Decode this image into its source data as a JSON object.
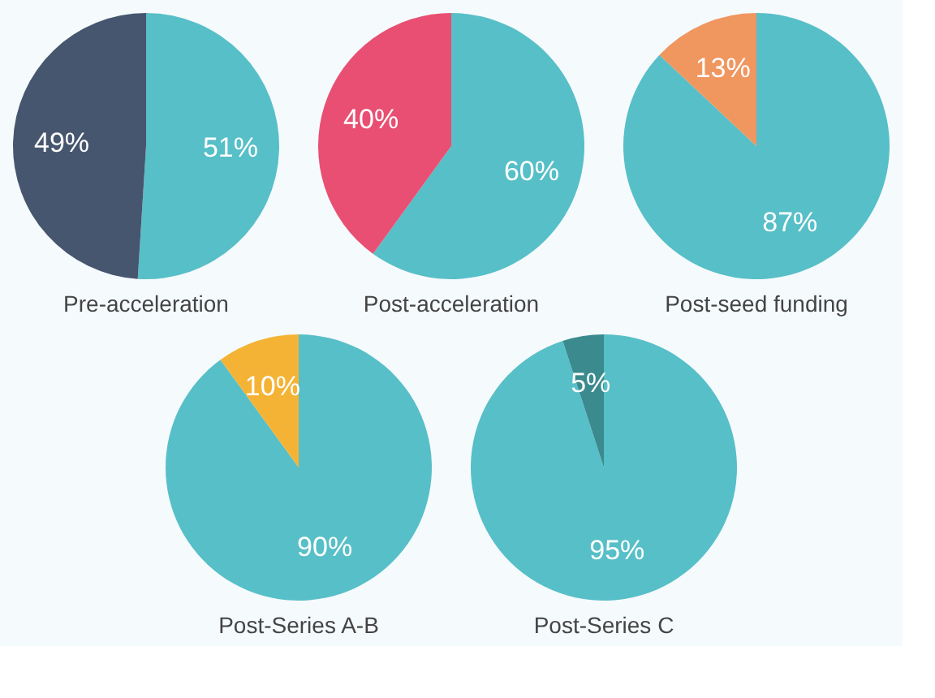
{
  "chart_data": [
    {
      "type": "pie",
      "title": "Pre-acceleration",
      "categories": [
        null,
        null
      ],
      "values": [
        51,
        49
      ],
      "colors": [
        "#57bfc7",
        "#46566e"
      ],
      "value_labels": [
        "51%",
        "49%"
      ]
    },
    {
      "type": "pie",
      "title": "Post-acceleration",
      "categories": [
        null,
        null
      ],
      "values": [
        60,
        40
      ],
      "colors": [
        "#57bfc7",
        "#e84f72"
      ],
      "value_labels": [
        "60%",
        "40%"
      ]
    },
    {
      "type": "pie",
      "title": "Post-seed funding",
      "categories": [
        null,
        null
      ],
      "values": [
        87,
        13
      ],
      "colors": [
        "#57bfc7",
        "#f0965f"
      ],
      "value_labels": [
        "87%",
        "13%"
      ]
    },
    {
      "type": "pie",
      "title": "Post-Series A-B",
      "categories": [
        null,
        null
      ],
      "values": [
        90,
        10
      ],
      "colors": [
        "#57bfc7",
        "#f5b335"
      ],
      "value_labels": [
        "90%",
        "10%"
      ]
    },
    {
      "type": "pie",
      "title": "Post-Series C",
      "categories": [
        null,
        null
      ],
      "values": [
        95,
        5
      ],
      "colors": [
        "#57bfc7",
        "#3a8a8e"
      ],
      "value_labels": [
        "95%",
        "5%"
      ]
    }
  ]
}
